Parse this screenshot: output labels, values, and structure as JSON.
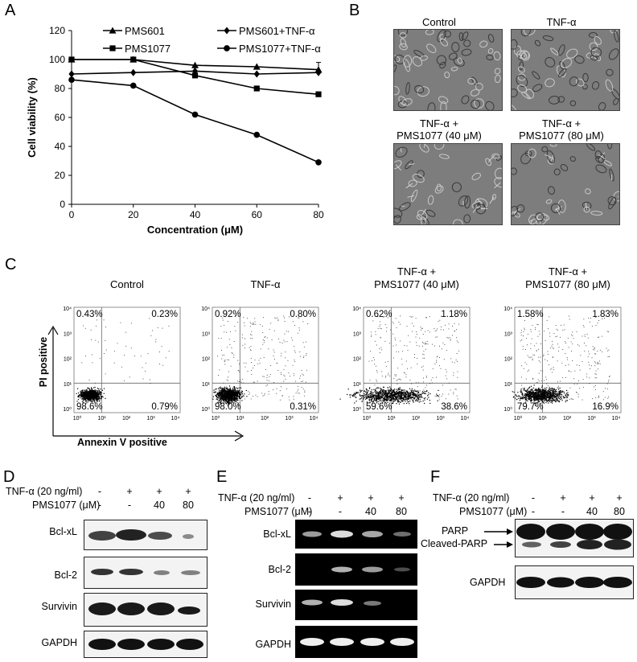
{
  "panels": {
    "A": "A",
    "B": "B",
    "C": "C",
    "D": "D",
    "E": "E",
    "F": "F"
  },
  "chart_data": {
    "type": "line",
    "xlabel": "Concentration (μM)",
    "ylabel": "Cell viability (%)",
    "xlim": [
      0,
      80
    ],
    "ylim": [
      0,
      120
    ],
    "xticks": [
      0,
      20,
      40,
      60,
      80
    ],
    "yticks": [
      0,
      20,
      40,
      60,
      80,
      100,
      120
    ],
    "legend_position": "top",
    "series": [
      {
        "name": "PMS601",
        "marker": "triangle",
        "x": [
          0,
          20,
          40,
          60,
          80
        ],
        "values": [
          100,
          100,
          96,
          95,
          93
        ]
      },
      {
        "name": "PMS1077",
        "marker": "square",
        "x": [
          0,
          20,
          40,
          60,
          80
        ],
        "values": [
          100,
          100,
          89,
          80,
          76
        ]
      },
      {
        "name": "PMS601+TNF-α",
        "marker": "diamond",
        "x": [
          0,
          20,
          40,
          60,
          80
        ],
        "values": [
          90,
          91,
          92,
          90,
          91
        ]
      },
      {
        "name": "PMS1077+TNF-α",
        "marker": "circle",
        "x": [
          0,
          20,
          40,
          60,
          80
        ],
        "values": [
          86,
          82,
          62,
          48,
          29
        ]
      }
    ]
  },
  "micrographs": {
    "control": "Control",
    "tnf": "TNF-α",
    "tnf_40": "TNF-α +\nPMS1077 (40 μM)",
    "tnf_80": "TNF-α +\nPMS1077 (80 μM)"
  },
  "flow": {
    "y_axis_label": "PI positive",
    "x_axis_label": "Annexin V positive",
    "plots": [
      {
        "title": "Control",
        "q_ul": "0.43%",
        "q_ur": "0.23%",
        "q_ll": "98.6%",
        "q_lr": "0.79%"
      },
      {
        "title": "TNF-α",
        "q_ul": "0.92%",
        "q_ur": "0.80%",
        "q_ll": "98.0%",
        "q_lr": "0.31%"
      },
      {
        "title": "TNF-α +\nPMS1077 (40 μM)",
        "q_ul": "0.62%",
        "q_ur": "1.18%",
        "q_ll": "59.6%",
        "q_lr": "38.6%"
      },
      {
        "title": "TNF-α +\nPMS1077 (80 μM)",
        "q_ul": "1.58%",
        "q_ur": "1.83%",
        "q_ll": "79.7%",
        "q_lr": "16.9%"
      }
    ]
  },
  "blots": {
    "tnf_label": "TNF-α (20 ng/ml)",
    "pms_label": "PMS1077 (μM)",
    "tnf_row": [
      "-",
      "+",
      "+",
      "+"
    ],
    "pms_row": [
      "-",
      "-",
      "40",
      "80"
    ],
    "D": [
      "Bcl-xL",
      "Bcl-2",
      "Survivin",
      "GAPDH"
    ],
    "E": [
      "Bcl-xL",
      "Bcl-2",
      "Survivin",
      "GAPDH"
    ],
    "F": [
      "PARP",
      "Cleaved-PARP",
      "GAPDH"
    ]
  }
}
